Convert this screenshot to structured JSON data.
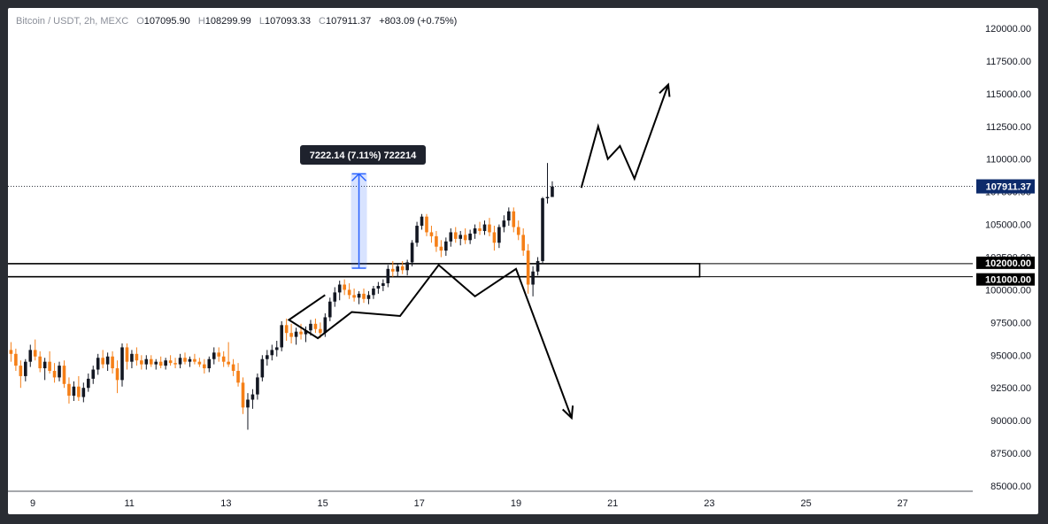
{
  "legend": {
    "symbol": "Bitcoin / USDT, 2h, MEXC",
    "open_label": "O",
    "open": "107095.90",
    "high_label": "H",
    "high": "108299.99",
    "low_label": "L",
    "low": "107093.33",
    "close_label": "C",
    "close": "107911.37",
    "change": "+803.09 (+0.75%)"
  },
  "colors": {
    "up": "#131722",
    "down": "#f57f17",
    "measure": "#2962ff",
    "line": "#000000",
    "grid_bg": "#ffffff"
  },
  "chart_data": {
    "type": "candlestick",
    "y_ticks": [
      "120000.00",
      "117500.00",
      "115000.00",
      "112500.00",
      "110000.00",
      "107500.00",
      "105000.00",
      "102500.00",
      "100000.00",
      "97500.00",
      "95000.00",
      "92500.00",
      "90000.00",
      "87500.00",
      "85000.00"
    ],
    "ylim": [
      85000,
      120000
    ],
    "x_ticks": [
      "9",
      "11",
      "13",
      "15",
      "17",
      "19",
      "21",
      "23",
      "25",
      "27"
    ],
    "x_tick_days": [
      9,
      11,
      13,
      15,
      17,
      19,
      21,
      23,
      25,
      27
    ],
    "xlim": [
      8.5,
      28.5
    ],
    "last_price": {
      "label": "107911.37",
      "value": 107911.37
    },
    "zone": {
      "top": 102000,
      "bottom": 101000,
      "top_label": "102000.00",
      "bottom_label": "101000.00",
      "x_start": 8.5,
      "x_end": 22.8
    },
    "measure": {
      "label": "7222.14 (7.11%) 722214",
      "day": 15.75,
      "from": 101650,
      "to": 108870
    },
    "path_down": [
      [
        15.05,
        99600
      ],
      [
        14.3,
        97700
      ],
      [
        14.9,
        96300
      ],
      [
        15.6,
        98300
      ],
      [
        16.6,
        98000
      ],
      [
        17.4,
        101900
      ],
      [
        18.15,
        99500
      ],
      [
        19.0,
        101600
      ],
      [
        20.15,
        90200
      ]
    ],
    "path_up": [
      [
        20.35,
        107800
      ],
      [
        20.7,
        112500
      ],
      [
        20.9,
        110000
      ],
      [
        21.15,
        111000
      ],
      [
        21.45,
        108500
      ],
      [
        22.15,
        115700
      ]
    ],
    "candles": [
      {
        "d": 8.55,
        "o": 95400,
        "h": 96000,
        "l": 94500,
        "c": 95100
      },
      {
        "d": 8.65,
        "o": 95100,
        "h": 95500,
        "l": 93800,
        "c": 94200
      },
      {
        "d": 8.75,
        "o": 94200,
        "h": 94600,
        "l": 92500,
        "c": 93400
      },
      {
        "d": 8.85,
        "o": 93400,
        "h": 94700,
        "l": 93000,
        "c": 94500
      },
      {
        "d": 8.95,
        "o": 94500,
        "h": 95800,
        "l": 94100,
        "c": 95400
      },
      {
        "d": 9.05,
        "o": 95400,
        "h": 96200,
        "l": 94600,
        "c": 94900
      },
      {
        "d": 9.15,
        "o": 94900,
        "h": 95300,
        "l": 93700,
        "c": 94000
      },
      {
        "d": 9.25,
        "o": 94000,
        "h": 94800,
        "l": 93100,
        "c": 94500
      },
      {
        "d": 9.35,
        "o": 94500,
        "h": 95300,
        "l": 93600,
        "c": 93800
      },
      {
        "d": 9.45,
        "o": 93800,
        "h": 94400,
        "l": 92900,
        "c": 93300
      },
      {
        "d": 9.55,
        "o": 93300,
        "h": 94500,
        "l": 93000,
        "c": 94200
      },
      {
        "d": 9.65,
        "o": 94200,
        "h": 94600,
        "l": 92500,
        "c": 92800
      },
      {
        "d": 9.75,
        "o": 92800,
        "h": 93300,
        "l": 91300,
        "c": 91900
      },
      {
        "d": 9.85,
        "o": 91900,
        "h": 93000,
        "l": 91500,
        "c": 92600
      },
      {
        "d": 9.95,
        "o": 92600,
        "h": 93400,
        "l": 91500,
        "c": 91800
      },
      {
        "d": 10.05,
        "o": 91800,
        "h": 92900,
        "l": 91400,
        "c": 92500
      },
      {
        "d": 10.15,
        "o": 92500,
        "h": 93600,
        "l": 92200,
        "c": 93200
      },
      {
        "d": 10.25,
        "o": 93200,
        "h": 94200,
        "l": 92800,
        "c": 93900
      },
      {
        "d": 10.35,
        "o": 93900,
        "h": 95100,
        "l": 93500,
        "c": 94800
      },
      {
        "d": 10.45,
        "o": 94800,
        "h": 95400,
        "l": 94000,
        "c": 94300
      },
      {
        "d": 10.55,
        "o": 94300,
        "h": 95200,
        "l": 93800,
        "c": 94900
      },
      {
        "d": 10.65,
        "o": 94900,
        "h": 95300,
        "l": 93600,
        "c": 94000
      },
      {
        "d": 10.75,
        "o": 94000,
        "h": 94600,
        "l": 92100,
        "c": 93100
      },
      {
        "d": 10.85,
        "o": 93100,
        "h": 95900,
        "l": 92600,
        "c": 95600
      },
      {
        "d": 10.95,
        "o": 95600,
        "h": 95900,
        "l": 93900,
        "c": 94500
      },
      {
        "d": 11.05,
        "o": 94500,
        "h": 95400,
        "l": 94000,
        "c": 95100
      },
      {
        "d": 11.15,
        "o": 95100,
        "h": 95600,
        "l": 94200,
        "c": 94600
      },
      {
        "d": 11.25,
        "o": 94600,
        "h": 95000,
        "l": 93900,
        "c": 94300
      },
      {
        "d": 11.35,
        "o": 94300,
        "h": 95000,
        "l": 93900,
        "c": 94700
      },
      {
        "d": 11.45,
        "o": 94700,
        "h": 95000,
        "l": 94100,
        "c": 94300
      },
      {
        "d": 11.55,
        "o": 94300,
        "h": 94700,
        "l": 93900,
        "c": 94500
      },
      {
        "d": 11.65,
        "o": 94500,
        "h": 94900,
        "l": 94000,
        "c": 94200
      },
      {
        "d": 11.75,
        "o": 94200,
        "h": 94800,
        "l": 93900,
        "c": 94600
      },
      {
        "d": 11.85,
        "o": 94600,
        "h": 95000,
        "l": 94200,
        "c": 94400
      },
      {
        "d": 11.95,
        "o": 94400,
        "h": 94800,
        "l": 94000,
        "c": 94300
      },
      {
        "d": 12.05,
        "o": 94300,
        "h": 95100,
        "l": 94000,
        "c": 94800
      },
      {
        "d": 12.15,
        "o": 94800,
        "h": 95200,
        "l": 94300,
        "c": 94500
      },
      {
        "d": 12.25,
        "o": 94500,
        "h": 94900,
        "l": 94100,
        "c": 94700
      },
      {
        "d": 12.35,
        "o": 94700,
        "h": 95100,
        "l": 94300,
        "c": 94500
      },
      {
        "d": 12.45,
        "o": 94500,
        "h": 94800,
        "l": 94100,
        "c": 94300
      },
      {
        "d": 12.55,
        "o": 94300,
        "h": 94700,
        "l": 93600,
        "c": 94000
      },
      {
        "d": 12.65,
        "o": 94000,
        "h": 94900,
        "l": 93700,
        "c": 94700
      },
      {
        "d": 12.75,
        "o": 94700,
        "h": 95600,
        "l": 94300,
        "c": 95200
      },
      {
        "d": 12.85,
        "o": 95200,
        "h": 95600,
        "l": 94500,
        "c": 94900
      },
      {
        "d": 12.95,
        "o": 94900,
        "h": 95300,
        "l": 94100,
        "c": 94500
      },
      {
        "d": 13.05,
        "o": 94500,
        "h": 96000,
        "l": 94100,
        "c": 94300
      },
      {
        "d": 13.15,
        "o": 94300,
        "h": 94700,
        "l": 93400,
        "c": 93800
      },
      {
        "d": 13.25,
        "o": 93800,
        "h": 94400,
        "l": 92600,
        "c": 92900
      },
      {
        "d": 13.35,
        "o": 92900,
        "h": 93300,
        "l": 90500,
        "c": 91000
      },
      {
        "d": 13.45,
        "o": 91000,
        "h": 92100,
        "l": 89300,
        "c": 91600
      },
      {
        "d": 13.55,
        "o": 91600,
        "h": 92400,
        "l": 90900,
        "c": 92000
      },
      {
        "d": 13.65,
        "o": 92000,
        "h": 93600,
        "l": 91600,
        "c": 93300
      },
      {
        "d": 13.75,
        "o": 93300,
        "h": 95000,
        "l": 93000,
        "c": 94700
      },
      {
        "d": 13.85,
        "o": 94700,
        "h": 95400,
        "l": 94200,
        "c": 95000
      },
      {
        "d": 13.95,
        "o": 95000,
        "h": 95800,
        "l": 94600,
        "c": 95400
      },
      {
        "d": 14.05,
        "o": 95400,
        "h": 96100,
        "l": 94900,
        "c": 95600
      },
      {
        "d": 14.15,
        "o": 95600,
        "h": 97600,
        "l": 95300,
        "c": 97300
      },
      {
        "d": 14.25,
        "o": 97300,
        "h": 97800,
        "l": 96100,
        "c": 96700
      },
      {
        "d": 14.35,
        "o": 96700,
        "h": 97400,
        "l": 95900,
        "c": 96400
      },
      {
        "d": 14.45,
        "o": 96400,
        "h": 97100,
        "l": 95800,
        "c": 96800
      },
      {
        "d": 14.55,
        "o": 96800,
        "h": 97400,
        "l": 96200,
        "c": 96600
      },
      {
        "d": 14.65,
        "o": 96600,
        "h": 97200,
        "l": 96000,
        "c": 96900
      },
      {
        "d": 14.75,
        "o": 96900,
        "h": 97700,
        "l": 96500,
        "c": 97400
      },
      {
        "d": 14.85,
        "o": 97400,
        "h": 97800,
        "l": 96700,
        "c": 97000
      },
      {
        "d": 14.95,
        "o": 97000,
        "h": 97500,
        "l": 96300,
        "c": 96700
      },
      {
        "d": 15.05,
        "o": 96700,
        "h": 98200,
        "l": 96400,
        "c": 97900
      },
      {
        "d": 15.15,
        "o": 97900,
        "h": 99400,
        "l": 97600,
        "c": 99100
      },
      {
        "d": 15.25,
        "o": 99100,
        "h": 100200,
        "l": 98700,
        "c": 99800
      },
      {
        "d": 15.35,
        "o": 99800,
        "h": 100700,
        "l": 99200,
        "c": 100400
      },
      {
        "d": 15.45,
        "o": 100400,
        "h": 100800,
        "l": 99600,
        "c": 100000
      },
      {
        "d": 15.55,
        "o": 100000,
        "h": 100500,
        "l": 99300,
        "c": 99600
      },
      {
        "d": 15.65,
        "o": 99600,
        "h": 100100,
        "l": 99100,
        "c": 99400
      },
      {
        "d": 15.75,
        "o": 99400,
        "h": 99900,
        "l": 98900,
        "c": 99700
      },
      {
        "d": 15.85,
        "o": 99700,
        "h": 100100,
        "l": 99000,
        "c": 99300
      },
      {
        "d": 15.95,
        "o": 99300,
        "h": 99900,
        "l": 98900,
        "c": 99600
      },
      {
        "d": 16.05,
        "o": 99600,
        "h": 100300,
        "l": 99300,
        "c": 100100
      },
      {
        "d": 16.15,
        "o": 100100,
        "h": 100600,
        "l": 99700,
        "c": 100300
      },
      {
        "d": 16.25,
        "o": 100300,
        "h": 100800,
        "l": 99900,
        "c": 100500
      },
      {
        "d": 16.35,
        "o": 100500,
        "h": 101900,
        "l": 100200,
        "c": 101600
      },
      {
        "d": 16.45,
        "o": 101600,
        "h": 102200,
        "l": 101000,
        "c": 101400
      },
      {
        "d": 16.55,
        "o": 101400,
        "h": 102000,
        "l": 101000,
        "c": 101800
      },
      {
        "d": 16.65,
        "o": 101800,
        "h": 102200,
        "l": 101200,
        "c": 101500
      },
      {
        "d": 16.75,
        "o": 101500,
        "h": 102300,
        "l": 101100,
        "c": 102100
      },
      {
        "d": 16.85,
        "o": 102100,
        "h": 103800,
        "l": 101800,
        "c": 103600
      },
      {
        "d": 16.95,
        "o": 103600,
        "h": 105200,
        "l": 103300,
        "c": 104900
      },
      {
        "d": 17.05,
        "o": 104900,
        "h": 105800,
        "l": 104600,
        "c": 105600
      },
      {
        "d": 17.15,
        "o": 105600,
        "h": 105800,
        "l": 104100,
        "c": 104400
      },
      {
        "d": 17.25,
        "o": 104400,
        "h": 104900,
        "l": 103600,
        "c": 104100
      },
      {
        "d": 17.35,
        "o": 104100,
        "h": 104500,
        "l": 102900,
        "c": 103300
      },
      {
        "d": 17.45,
        "o": 103300,
        "h": 103800,
        "l": 102500,
        "c": 103000
      },
      {
        "d": 17.55,
        "o": 103000,
        "h": 104000,
        "l": 102600,
        "c": 103700
      },
      {
        "d": 17.65,
        "o": 103700,
        "h": 104700,
        "l": 103300,
        "c": 104400
      },
      {
        "d": 17.75,
        "o": 104400,
        "h": 104800,
        "l": 103600,
        "c": 103900
      },
      {
        "d": 17.85,
        "o": 103900,
        "h": 104500,
        "l": 103400,
        "c": 104200
      },
      {
        "d": 17.95,
        "o": 104200,
        "h": 104700,
        "l": 103500,
        "c": 103800
      },
      {
        "d": 18.05,
        "o": 103800,
        "h": 104600,
        "l": 103500,
        "c": 104300
      },
      {
        "d": 18.15,
        "o": 104300,
        "h": 105000,
        "l": 103900,
        "c": 104700
      },
      {
        "d": 18.25,
        "o": 104700,
        "h": 105200,
        "l": 104200,
        "c": 104500
      },
      {
        "d": 18.35,
        "o": 104500,
        "h": 105300,
        "l": 104200,
        "c": 105000
      },
      {
        "d": 18.45,
        "o": 105000,
        "h": 105500,
        "l": 104100,
        "c": 104400
      },
      {
        "d": 18.55,
        "o": 104400,
        "h": 104900,
        "l": 103000,
        "c": 103600
      },
      {
        "d": 18.65,
        "o": 103600,
        "h": 105000,
        "l": 103200,
        "c": 104800
      },
      {
        "d": 18.75,
        "o": 104800,
        "h": 105700,
        "l": 104400,
        "c": 105300
      },
      {
        "d": 18.85,
        "o": 105300,
        "h": 106300,
        "l": 104900,
        "c": 106000
      },
      {
        "d": 18.95,
        "o": 106000,
        "h": 106300,
        "l": 104400,
        "c": 104800
      },
      {
        "d": 19.05,
        "o": 104800,
        "h": 105300,
        "l": 103800,
        "c": 104200
      },
      {
        "d": 19.15,
        "o": 104200,
        "h": 104700,
        "l": 102600,
        "c": 103000
      },
      {
        "d": 19.25,
        "o": 103000,
        "h": 103500,
        "l": 99700,
        "c": 100400
      },
      {
        "d": 19.35,
        "o": 100400,
        "h": 101800,
        "l": 99500,
        "c": 101400
      },
      {
        "d": 19.45,
        "o": 101400,
        "h": 102500,
        "l": 101100,
        "c": 102200
      },
      {
        "d": 19.55,
        "o": 102200,
        "h": 107100,
        "l": 102000,
        "c": 107000
      },
      {
        "d": 19.65,
        "o": 107000,
        "h": 109700,
        "l": 106600,
        "c": 107100
      },
      {
        "d": 19.75,
        "o": 107100,
        "h": 108300,
        "l": 107100,
        "c": 107900
      }
    ]
  }
}
